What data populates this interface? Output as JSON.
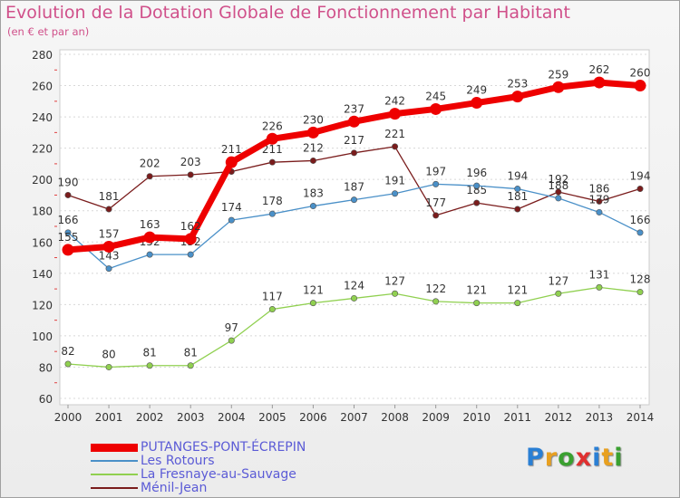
{
  "title": "Evolution de la Dotation Globale de Fonctionnement par Habitant",
  "subtitle": "(en € et par an)",
  "chart_data": {
    "type": "line",
    "title": "Evolution de la Dotation Globale de Fonctionnement par Habitant",
    "subtitle": "(en € et par an)",
    "x": [
      "2000",
      "2001",
      "2002",
      "2003",
      "2004",
      "2005",
      "2006",
      "2007",
      "2008",
      "2009",
      "2010",
      "2011",
      "2012",
      "2013",
      "2014"
    ],
    "ylim": [
      60,
      280
    ],
    "yticks": [
      60,
      80,
      100,
      120,
      140,
      160,
      180,
      200,
      220,
      240,
      260,
      280
    ],
    "grid": "horizontal",
    "legend_placement": "bottom-left",
    "series": [
      {
        "name": "Ménil-Jean",
        "color": "#7a1c1c",
        "values": [
          190,
          181,
          202,
          203,
          205,
          211,
          212,
          217,
          221,
          177,
          185,
          181,
          192,
          186,
          194
        ],
        "labels": [
          "190",
          "181",
          "202",
          "203",
          "",
          "211",
          "212",
          "217",
          "221",
          "177",
          "185",
          "181",
          "192",
          "186",
          "194"
        ]
      },
      {
        "name": "Les Rotours",
        "color": "#4a90c8",
        "values": [
          166,
          143,
          152,
          152,
          174,
          178,
          183,
          187,
          191,
          197,
          196,
          194,
          188,
          179,
          166
        ],
        "labels": [
          "166",
          "143",
          "152",
          "152",
          "174",
          "178",
          "183",
          "187",
          "191",
          "197",
          "196",
          "194",
          "188",
          "179",
          "166"
        ]
      },
      {
        "name": "La Fresnaye-au-Sauvage",
        "color": "#90d050",
        "values": [
          82,
          80,
          81,
          81,
          97,
          117,
          121,
          124,
          127,
          122,
          121,
          121,
          127,
          131,
          128
        ],
        "labels": [
          "82",
          "80",
          "81",
          "81",
          "97",
          "117",
          "121",
          "124",
          "127",
          "122",
          "121",
          "121",
          "127",
          "131",
          "128"
        ]
      },
      {
        "name": "PUTANGES-PONT-ÉCREPIN",
        "color": "#ee0000",
        "values": [
          155,
          157,
          163,
          162,
          211,
          226,
          230,
          237,
          242,
          245,
          249,
          253,
          259,
          262,
          260
        ],
        "labels": [
          "155",
          "157",
          "163",
          "162",
          "211",
          "226",
          "230",
          "237",
          "242",
          "245",
          "249",
          "253",
          "259",
          "262",
          "260"
        ]
      }
    ]
  },
  "legend": [
    {
      "name": "PUTANGES-PONT-ÉCREPIN",
      "color": "#ee0000"
    },
    {
      "name": "Les Rotours",
      "color": "#4a90c8"
    },
    {
      "name": "La Fresnaye-au-Sauvage",
      "color": "#90d050"
    },
    {
      "name": "Ménil-Jean",
      "color": "#7a1c1c"
    }
  ],
  "logo": {
    "letters": [
      "P",
      "r",
      "o",
      "x",
      "i",
      "t",
      "i"
    ],
    "colors": [
      "#2a7fd4",
      "#e8a020",
      "#3aa030",
      "#e03030",
      "#2a7fd4",
      "#e8a020",
      "#3aa030"
    ]
  }
}
